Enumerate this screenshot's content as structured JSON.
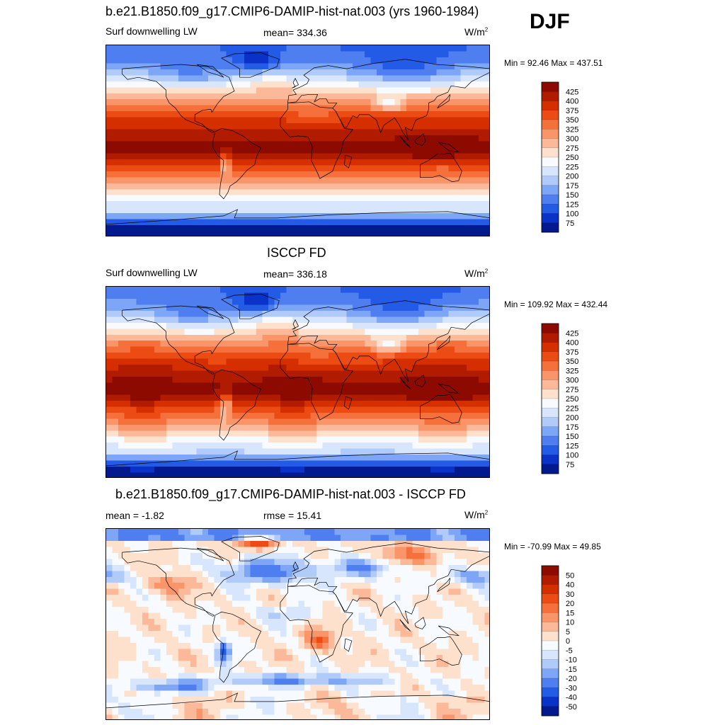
{
  "season": "DJF",
  "panels": [
    {
      "title": "b.e21.B1850.f09_g17.CMIP6-DAMIP-hist-nat.003 (yrs 1960-1984)",
      "left_label": "Surf downwelling LW",
      "center_label": "mean= 334.36",
      "units_base": "W/m",
      "units_exp": "2",
      "minmax": "Min =  92.46 Max = 437.51",
      "kind": "field",
      "colorbar": {
        "labels": [
          "425",
          "400",
          "375",
          "350",
          "325",
          "300",
          "275",
          "250",
          "225",
          "200",
          "175",
          "150",
          "125",
          "100",
          "75"
        ],
        "colors": [
          "#8c0a00",
          "#b11c00",
          "#d52f00",
          "#ec4c13",
          "#f5703a",
          "#f99569",
          "#fbb99a",
          "#fde1cd",
          "#f7fbff",
          "#d7e6fc",
          "#b0cbfa",
          "#7ea6f6",
          "#4e7ef0",
          "#245be6",
          "#0b32c8",
          "#021a8e"
        ]
      }
    },
    {
      "title": "ISCCP FD",
      "left_label": "Surf downwelling LW",
      "center_label": "mean= 336.18",
      "units_base": "W/m",
      "units_exp": "2",
      "minmax": "Min = 109.92 Max = 432.44",
      "kind": "field",
      "colorbar": {
        "labels": [
          "425",
          "400",
          "375",
          "350",
          "325",
          "300",
          "275",
          "250",
          "225",
          "200",
          "175",
          "150",
          "125",
          "100",
          "75"
        ],
        "colors": [
          "#8c0a00",
          "#b11c00",
          "#d52f00",
          "#ec4c13",
          "#f5703a",
          "#f99569",
          "#fbb99a",
          "#fde1cd",
          "#f7fbff",
          "#d7e6fc",
          "#b0cbfa",
          "#7ea6f6",
          "#4e7ef0",
          "#245be6",
          "#0b32c8",
          "#021a8e"
        ]
      }
    },
    {
      "title": "b.e21.B1850.f09_g17.CMIP6-DAMIP-hist-nat.003 - ISCCP FD",
      "left_label": "mean =  -1.82",
      "center_label": "rmse =  15.41",
      "units_base": "W/m",
      "units_exp": "2",
      "minmax": "Min = -70.99 Max =  49.85",
      "kind": "diff",
      "colorbar": {
        "labels": [
          "50",
          "40",
          "30",
          "20",
          "15",
          "10",
          "5",
          "0",
          "-5",
          "-10",
          "-15",
          "-20",
          "-30",
          "-40",
          "-50"
        ],
        "colors": [
          "#8c0a00",
          "#b11c00",
          "#d52f00",
          "#ec4c13",
          "#f5703a",
          "#f99569",
          "#fbb99a",
          "#fde1cd",
          "#f7fbff",
          "#d7e6fc",
          "#b0cbfa",
          "#7ea6f6",
          "#4e7ef0",
          "#245be6",
          "#0b32c8",
          "#021a8e"
        ]
      }
    }
  ],
  "chart_data": [
    {
      "type": "heatmap",
      "title": "b.e21.B1850.f09_g17.CMIP6-DAMIP-hist-nat.003 (yrs 1960-1984)",
      "variable": "Surf downwelling LW",
      "units": "W/m2",
      "mean": 334.36,
      "min": 92.46,
      "max": 437.51,
      "contour_levels": [
        75,
        100,
        125,
        150,
        175,
        200,
        225,
        250,
        275,
        300,
        325,
        350,
        375,
        400,
        425
      ]
    },
    {
      "type": "heatmap",
      "title": "ISCCP FD",
      "variable": "Surf downwelling LW",
      "units": "W/m2",
      "mean": 336.18,
      "min": 109.92,
      "max": 432.44,
      "contour_levels": [
        75,
        100,
        125,
        150,
        175,
        200,
        225,
        250,
        275,
        300,
        325,
        350,
        375,
        400,
        425
      ]
    },
    {
      "type": "heatmap",
      "title": "b.e21.B1850.f09_g17.CMIP6-DAMIP-hist-nat.003 - ISCCP FD",
      "units": "W/m2",
      "mean": -1.82,
      "rmse": 15.41,
      "min": -70.99,
      "max": 49.85,
      "contour_levels": [
        -50,
        -40,
        -30,
        -20,
        -15,
        -10,
        -5,
        0,
        5,
        10,
        15,
        20,
        30,
        40,
        50
      ]
    }
  ]
}
